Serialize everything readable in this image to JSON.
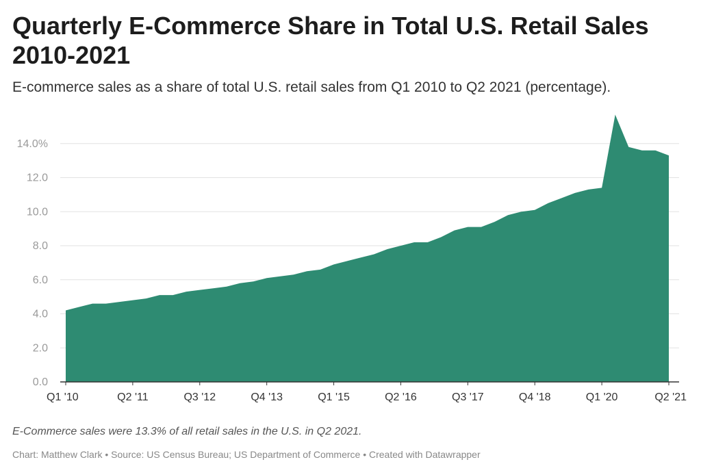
{
  "header": {
    "title": "Quarterly E-Commerce Share in Total U.S. Retail Sales 2010-2021",
    "subtitle": "E-commerce sales as a share of total U.S. retail sales from Q1 2010 to Q2 2021 (percentage)."
  },
  "notes": {
    "annotation": "E-Commerce sales were 13.3% of all retail sales in the U.S. in Q2 2021.",
    "footer": "Chart: Matthew Clark • Source: US Census Bureau; US Department of Commerce • Created with Datawrapper"
  },
  "chart_data": {
    "type": "area",
    "color": "#2e8b72",
    "x": [
      "Q1 2010",
      "Q2 2010",
      "Q3 2010",
      "Q4 2010",
      "Q1 2011",
      "Q2 2011",
      "Q3 2011",
      "Q4 2011",
      "Q1 2012",
      "Q2 2012",
      "Q3 2012",
      "Q4 2012",
      "Q1 2013",
      "Q2 2013",
      "Q3 2013",
      "Q4 2013",
      "Q1 2014",
      "Q2 2014",
      "Q3 2014",
      "Q4 2014",
      "Q1 2015",
      "Q2 2015",
      "Q3 2015",
      "Q4 2015",
      "Q1 2016",
      "Q2 2016",
      "Q3 2016",
      "Q4 2016",
      "Q1 2017",
      "Q2 2017",
      "Q3 2017",
      "Q4 2017",
      "Q1 2018",
      "Q2 2018",
      "Q3 2018",
      "Q4 2018",
      "Q1 2019",
      "Q2 2019",
      "Q3 2019",
      "Q4 2019",
      "Q1 2020",
      "Q2 2020",
      "Q3 2020",
      "Q4 2020",
      "Q1 2021",
      "Q2 2021"
    ],
    "values": [
      4.2,
      4.4,
      4.6,
      4.6,
      4.7,
      4.8,
      4.9,
      5.1,
      5.1,
      5.3,
      5.4,
      5.5,
      5.6,
      5.8,
      5.9,
      6.1,
      6.2,
      6.3,
      6.5,
      6.6,
      6.9,
      7.1,
      7.3,
      7.5,
      7.8,
      8.0,
      8.2,
      8.2,
      8.5,
      8.9,
      9.1,
      9.1,
      9.4,
      9.8,
      10.0,
      10.1,
      10.5,
      10.8,
      11.1,
      11.3,
      11.4,
      15.7,
      13.8,
      13.6,
      13.6,
      13.3
    ],
    "xtick_labels": [
      "Q1 '10",
      "Q2 '11",
      "Q3 '12",
      "Q4 '13",
      "Q1 '15",
      "Q2 '16",
      "Q3 '17",
      "Q4 '18",
      "Q1 '20",
      "Q2 '21"
    ],
    "xtick_indices": [
      0,
      5,
      10,
      15,
      20,
      25,
      30,
      35,
      40,
      45
    ],
    "ytick_labels": [
      "0.0",
      "2.0",
      "4.0",
      "6.0",
      "8.0",
      "10.0",
      "12.0",
      "14.0%"
    ],
    "yticks": [
      0,
      2,
      4,
      6,
      8,
      10,
      12,
      14
    ],
    "ylim": [
      0,
      16
    ],
    "grid": true
  }
}
